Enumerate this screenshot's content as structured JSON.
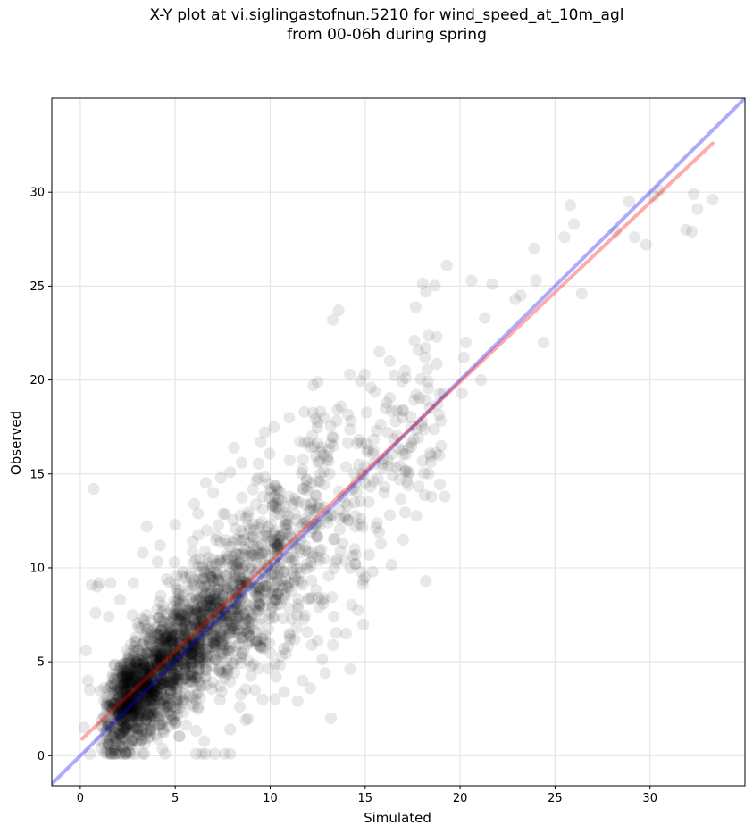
{
  "chart_data": {
    "type": "scatter",
    "title_line1": "X-Y plot at vi.siglingastofnun.5210 for wind_speed_at_10m_agl",
    "title_line2": "from 00-06h during spring",
    "xlabel": "Simulated",
    "ylabel": "Observed",
    "xlim": [
      -1.5,
      35.0
    ],
    "ylim": [
      -1.6,
      35.0
    ],
    "xticks": [
      0,
      5,
      10,
      15,
      20,
      25,
      30
    ],
    "yticks": [
      0,
      5,
      10,
      15,
      20,
      25,
      30
    ],
    "grid": true,
    "point_color": "#000000",
    "point_alpha": 0.09,
    "identity_line": {
      "color": "#0000ff",
      "alpha": 0.33
    },
    "fit_line": {
      "color": "#ff0000",
      "alpha": 0.33,
      "start": [
        0.1,
        0.9
      ],
      "end": [
        33.3,
        32.6
      ]
    },
    "cluster_mean": {
      "slope": 0.96,
      "intercept": 0.5
    },
    "points": [
      [
        0.7,
        14.2
      ],
      [
        0.8,
        7.6
      ],
      [
        0.6,
        9.1
      ],
      [
        1.0,
        9.2
      ],
      [
        0.3,
        5.6
      ],
      [
        0.4,
        4.0
      ],
      [
        0.5,
        3.5
      ],
      [
        0.2,
        1.5
      ],
      [
        0.5,
        0.1
      ],
      [
        1.1,
        0.4
      ],
      [
        1.8,
        0.1
      ],
      [
        2.4,
        0.2
      ],
      [
        3.5,
        12.2
      ],
      [
        3.3,
        10.8
      ],
      [
        2.8,
        9.2
      ],
      [
        4.2,
        11.2
      ],
      [
        5.0,
        12.3
      ],
      [
        6.0,
        13.4
      ],
      [
        6.2,
        12.9
      ],
      [
        7.0,
        14.0
      ],
      [
        7.4,
        14.8
      ],
      [
        8.1,
        16.4
      ],
      [
        7.9,
        15.1
      ],
      [
        8.5,
        15.6
      ],
      [
        9.5,
        16.7
      ],
      [
        10.2,
        17.5
      ],
      [
        11.0,
        18.0
      ],
      [
        11.8,
        18.3
      ],
      [
        12.5,
        19.9
      ],
      [
        13.3,
        23.2
      ],
      [
        13.6,
        23.7
      ],
      [
        14.2,
        20.3
      ],
      [
        15.3,
        19.6
      ],
      [
        16.3,
        21.0
      ],
      [
        17.1,
        20.5
      ],
      [
        17.6,
        22.1
      ],
      [
        17.8,
        21.6
      ],
      [
        18.2,
        24.7
      ],
      [
        19.3,
        26.1
      ],
      [
        20.6,
        25.3
      ],
      [
        21.7,
        25.1
      ],
      [
        21.3,
        23.3
      ],
      [
        22.9,
        24.3
      ],
      [
        23.2,
        24.5
      ],
      [
        23.9,
        27.0
      ],
      [
        24.0,
        25.3
      ],
      [
        25.5,
        27.6
      ],
      [
        25.8,
        29.3
      ],
      [
        26.0,
        28.3
      ],
      [
        26.4,
        24.6
      ],
      [
        24.4,
        22.0
      ],
      [
        20.2,
        21.2
      ],
      [
        20.3,
        22.0
      ],
      [
        20.1,
        19.3
      ],
      [
        21.1,
        20.0
      ],
      [
        28.2,
        27.9
      ],
      [
        28.9,
        29.5
      ],
      [
        29.2,
        27.6
      ],
      [
        29.8,
        27.2
      ],
      [
        30.2,
        29.8
      ],
      [
        30.5,
        30.1
      ],
      [
        31.9,
        28.0
      ],
      [
        32.2,
        27.9
      ],
      [
        32.3,
        29.9
      ],
      [
        32.5,
        29.1
      ],
      [
        33.3,
        29.6
      ],
      [
        18.2,
        9.3
      ],
      [
        19.2,
        13.8
      ],
      [
        17.0,
        11.5
      ],
      [
        16.3,
        12.8
      ],
      [
        13.2,
        2.0
      ],
      [
        12.1,
        3.6
      ],
      [
        11.7,
        4.0
      ],
      [
        12.9,
        4.4
      ],
      [
        6.1,
        0.1
      ],
      [
        6.4,
        0.1
      ],
      [
        6.6,
        0.1
      ],
      [
        7.6,
        0.1
      ],
      [
        7.9,
        0.1
      ],
      [
        16.2,
        17.2
      ],
      [
        16.6,
        17.8
      ],
      [
        17.3,
        16.4
      ],
      [
        17.0,
        18.4
      ],
      [
        18.0,
        17.8
      ],
      [
        18.4,
        18.5
      ],
      [
        18.8,
        18.7
      ],
      [
        19.0,
        16.5
      ],
      [
        19.1,
        19.3
      ],
      [
        18.9,
        16.0
      ],
      [
        15.6,
        17.3
      ],
      [
        15.0,
        14.5
      ],
      [
        14.5,
        12.2
      ],
      [
        15.2,
        13.5
      ],
      [
        16.0,
        14.0
      ],
      [
        17.3,
        15.0
      ],
      [
        17.2,
        14.6
      ],
      [
        14.5,
        10.7
      ],
      [
        13.7,
        10.9
      ],
      [
        15.4,
        9.8
      ],
      [
        12.2,
        8.4
      ],
      [
        11.3,
        6.2
      ],
      [
        10.3,
        4.2
      ],
      [
        9.2,
        3.5
      ],
      [
        8.4,
        2.6
      ],
      [
        9.6,
        3.0
      ],
      [
        10.5,
        4.8
      ],
      [
        7.9,
        1.4
      ],
      [
        8.7,
        1.9
      ],
      [
        0.9,
        9.0
      ],
      [
        1.6,
        9.2
      ],
      [
        2.1,
        8.3
      ],
      [
        1.5,
        7.4
      ],
      [
        13.3,
        5.9
      ],
      [
        12.8,
        8.1
      ],
      [
        14.0,
        6.5
      ],
      [
        15.0,
        9.5
      ],
      [
        11.0,
        13.8
      ],
      [
        10.0,
        14.2
      ]
    ]
  }
}
